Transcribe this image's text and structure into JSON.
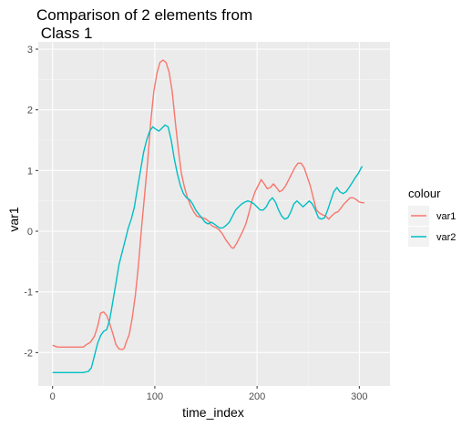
{
  "chart_data": {
    "type": "line",
    "title_line1": "Comparison of 2 elements from",
    "title_line2": " Class 1",
    "xlabel": "time_index",
    "ylabel": "var1",
    "xlim": [
      -14,
      330
    ],
    "ylim": [
      -2.55,
      3.12
    ],
    "x_ticks": [
      0,
      100,
      200,
      300
    ],
    "y_ticks": [
      -2,
      -1,
      0,
      1,
      2,
      3
    ],
    "grid": true,
    "legend": {
      "title": "colour",
      "position": "right"
    },
    "series": [
      {
        "name": "var1",
        "color": "#F8766D",
        "points": [
          [
            0,
            -1.88
          ],
          [
            5,
            -1.91
          ],
          [
            10,
            -1.91
          ],
          [
            20,
            -1.91
          ],
          [
            30,
            -1.91
          ],
          [
            33,
            -1.87
          ],
          [
            37,
            -1.83
          ],
          [
            41,
            -1.73
          ],
          [
            44,
            -1.57
          ],
          [
            47,
            -1.35
          ],
          [
            50,
            -1.33
          ],
          [
            53,
            -1.39
          ],
          [
            56,
            -1.53
          ],
          [
            59,
            -1.69
          ],
          [
            62,
            -1.87
          ],
          [
            65,
            -1.94
          ],
          [
            68,
            -1.95
          ],
          [
            70,
            -1.93
          ],
          [
            72,
            -1.83
          ],
          [
            75,
            -1.7
          ],
          [
            78,
            -1.42
          ],
          [
            81,
            -1.05
          ],
          [
            84,
            -0.55
          ],
          [
            87,
            0.05
          ],
          [
            90,
            0.6
          ],
          [
            93,
            1.15
          ],
          [
            96,
            1.8
          ],
          [
            99,
            2.3
          ],
          [
            102,
            2.6
          ],
          [
            105,
            2.78
          ],
          [
            108,
            2.82
          ],
          [
            111,
            2.78
          ],
          [
            114,
            2.62
          ],
          [
            117,
            2.3
          ],
          [
            120,
            1.8
          ],
          [
            123,
            1.35
          ],
          [
            126,
            0.95
          ],
          [
            129,
            0.72
          ],
          [
            132,
            0.55
          ],
          [
            135,
            0.42
          ],
          [
            138,
            0.32
          ],
          [
            141,
            0.25
          ],
          [
            144,
            0.23
          ],
          [
            147,
            0.22
          ],
          [
            150,
            0.2
          ],
          [
            153,
            0.16
          ],
          [
            155,
            0.1
          ],
          [
            158,
            0.07
          ],
          [
            160,
            0.06
          ],
          [
            163,
            0.02
          ],
          [
            166,
            -0.04
          ],
          [
            169,
            -0.13
          ],
          [
            172,
            -0.2
          ],
          [
            175,
            -0.27
          ],
          [
            177,
            -0.28
          ],
          [
            180,
            -0.2
          ],
          [
            183,
            -0.1
          ],
          [
            186,
            0.0
          ],
          [
            189,
            0.12
          ],
          [
            192,
            0.3
          ],
          [
            195,
            0.5
          ],
          [
            198,
            0.65
          ],
          [
            201,
            0.75
          ],
          [
            204,
            0.85
          ],
          [
            207,
            0.78
          ],
          [
            210,
            0.7
          ],
          [
            213,
            0.72
          ],
          [
            216,
            0.78
          ],
          [
            219,
            0.72
          ],
          [
            222,
            0.65
          ],
          [
            225,
            0.68
          ],
          [
            228,
            0.75
          ],
          [
            231,
            0.85
          ],
          [
            234,
            0.95
          ],
          [
            237,
            1.05
          ],
          [
            240,
            1.12
          ],
          [
            243,
            1.12
          ],
          [
            246,
            1.05
          ],
          [
            249,
            0.9
          ],
          [
            252,
            0.75
          ],
          [
            255,
            0.55
          ],
          [
            258,
            0.35
          ],
          [
            261,
            0.3
          ],
          [
            264,
            0.27
          ],
          [
            267,
            0.25
          ],
          [
            270,
            0.2
          ],
          [
            273,
            0.25
          ],
          [
            276,
            0.3
          ],
          [
            279,
            0.32
          ],
          [
            282,
            0.38
          ],
          [
            285,
            0.45
          ],
          [
            288,
            0.5
          ],
          [
            291,
            0.55
          ],
          [
            294,
            0.55
          ],
          [
            297,
            0.52
          ],
          [
            300,
            0.48
          ],
          [
            303,
            0.47
          ],
          [
            305,
            0.47
          ]
        ]
      },
      {
        "name": "var2",
        "color": "#00BFC4",
        "points": [
          [
            0,
            -2.33
          ],
          [
            10,
            -2.33
          ],
          [
            20,
            -2.33
          ],
          [
            30,
            -2.33
          ],
          [
            35,
            -2.31
          ],
          [
            38,
            -2.25
          ],
          [
            41,
            -2.05
          ],
          [
            44,
            -1.85
          ],
          [
            47,
            -1.72
          ],
          [
            50,
            -1.65
          ],
          [
            53,
            -1.62
          ],
          [
            56,
            -1.45
          ],
          [
            59,
            -1.15
          ],
          [
            62,
            -0.85
          ],
          [
            65,
            -0.55
          ],
          [
            68,
            -0.35
          ],
          [
            71,
            -0.15
          ],
          [
            74,
            0.05
          ],
          [
            77,
            0.2
          ],
          [
            80,
            0.4
          ],
          [
            83,
            0.7
          ],
          [
            86,
            1.0
          ],
          [
            89,
            1.3
          ],
          [
            92,
            1.5
          ],
          [
            95,
            1.65
          ],
          [
            98,
            1.72
          ],
          [
            101,
            1.68
          ],
          [
            104,
            1.65
          ],
          [
            107,
            1.7
          ],
          [
            110,
            1.75
          ],
          [
            113,
            1.72
          ],
          [
            116,
            1.5
          ],
          [
            119,
            1.2
          ],
          [
            122,
            0.95
          ],
          [
            125,
            0.75
          ],
          [
            128,
            0.62
          ],
          [
            131,
            0.55
          ],
          [
            134,
            0.52
          ],
          [
            137,
            0.45
          ],
          [
            140,
            0.35
          ],
          [
            143,
            0.28
          ],
          [
            146,
            0.22
          ],
          [
            149,
            0.15
          ],
          [
            152,
            0.12
          ],
          [
            155,
            0.15
          ],
          [
            158,
            0.12
          ],
          [
            161,
            0.08
          ],
          [
            164,
            0.05
          ],
          [
            167,
            0.06
          ],
          [
            170,
            0.1
          ],
          [
            173,
            0.15
          ],
          [
            176,
            0.25
          ],
          [
            179,
            0.35
          ],
          [
            182,
            0.4
          ],
          [
            185,
            0.45
          ],
          [
            188,
            0.48
          ],
          [
            191,
            0.5
          ],
          [
            194,
            0.48
          ],
          [
            197,
            0.45
          ],
          [
            200,
            0.4
          ],
          [
            203,
            0.35
          ],
          [
            206,
            0.35
          ],
          [
            209,
            0.4
          ],
          [
            212,
            0.5
          ],
          [
            215,
            0.55
          ],
          [
            218,
            0.48
          ],
          [
            221,
            0.35
          ],
          [
            224,
            0.25
          ],
          [
            227,
            0.2
          ],
          [
            230,
            0.22
          ],
          [
            233,
            0.32
          ],
          [
            236,
            0.45
          ],
          [
            239,
            0.5
          ],
          [
            242,
            0.45
          ],
          [
            245,
            0.4
          ],
          [
            248,
            0.45
          ],
          [
            251,
            0.5
          ],
          [
            254,
            0.45
          ],
          [
            257,
            0.35
          ],
          [
            260,
            0.22
          ],
          [
            263,
            0.2
          ],
          [
            266,
            0.22
          ],
          [
            269,
            0.35
          ],
          [
            272,
            0.5
          ],
          [
            275,
            0.65
          ],
          [
            278,
            0.72
          ],
          [
            281,
            0.65
          ],
          [
            284,
            0.62
          ],
          [
            287,
            0.65
          ],
          [
            290,
            0.72
          ],
          [
            293,
            0.8
          ],
          [
            296,
            0.88
          ],
          [
            299,
            0.95
          ],
          [
            302,
            1.05
          ],
          [
            303,
            1.07
          ]
        ]
      }
    ]
  }
}
